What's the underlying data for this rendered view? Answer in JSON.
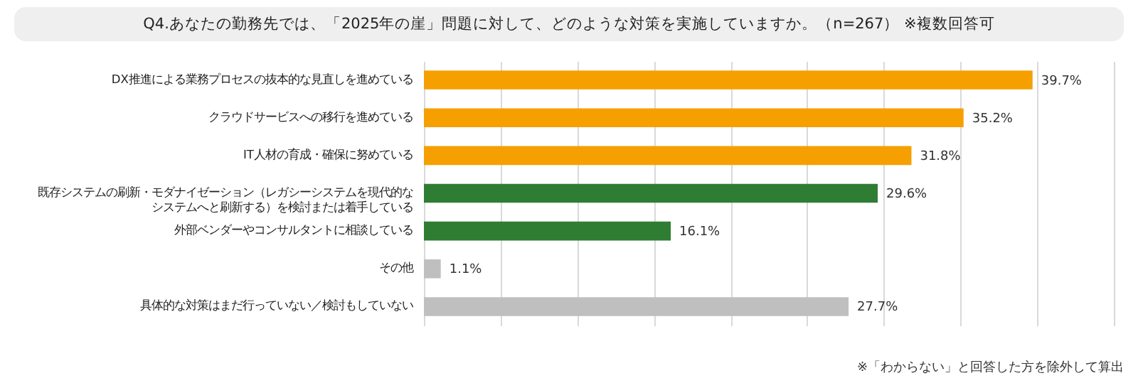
{
  "chart_data": {
    "type": "bar",
    "orientation": "horizontal",
    "title": "Q4.あなたの勤務先では、「2025年の崖」問題に対して、どのような対策を実施していますか。（n=267） ※複数回答可",
    "categories": [
      "DX推進による業務プロセスの抜本的な見直しを進めている",
      "クラウドサービスへの移行を進めている",
      "IT人材の育成・確保に努めている",
      "既存システムの刷新・モダナイゼーション（レガシーシステムを現代的なシステムへと刷新する）を検討または着手している",
      "外部ベンダーやコンサルタントに相談している",
      "その他",
      "具体的な対策はまだ行っていない／検討もしていない"
    ],
    "values": [
      39.7,
      35.2,
      31.8,
      29.6,
      16.1,
      1.1,
      27.7
    ],
    "colors": [
      "#f5a000",
      "#f5a000",
      "#f5a000",
      "#2e7d32",
      "#2e7d32",
      "#bfbfbf",
      "#bfbfbf"
    ],
    "value_labels": [
      "39.7%",
      "35.2%",
      "31.8%",
      "29.6%",
      "16.1%",
      "1.1%",
      "27.7%"
    ],
    "xlim": [
      0,
      45
    ],
    "xticks": [
      0,
      5,
      10,
      15,
      20,
      25,
      30,
      35,
      40,
      45
    ],
    "grid": "x",
    "tick_labels": "y",
    "annotations": [
      "※「わからない」と回答した方を除外して算出"
    ]
  }
}
